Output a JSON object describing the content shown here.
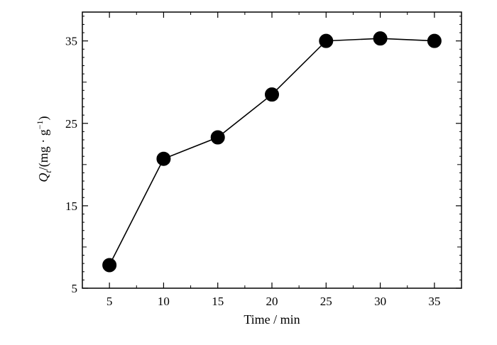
{
  "chart_data": {
    "type": "line",
    "title": "",
    "xlabel": "Time / min",
    "ylabel": {
      "symbol": "Q",
      "subscript": "t",
      "unit_open": "/(mg · g",
      "unit_sup": "−1",
      "unit_close": ")"
    },
    "xlim": [
      2.5,
      37.5
    ],
    "ylim": [
      5,
      38.5
    ],
    "xticks": [
      5,
      10,
      15,
      20,
      25,
      30,
      35
    ],
    "yticks": [
      5,
      15,
      25,
      35
    ],
    "grid": false,
    "legend": "none",
    "marker_color": "#000000",
    "line_color": "#000000",
    "series": [
      {
        "x": [
          5,
          10,
          15,
          20,
          25,
          30,
          35
        ],
        "y": [
          7.8,
          20.7,
          23.3,
          28.5,
          35.0,
          35.3,
          35.0
        ]
      }
    ]
  }
}
